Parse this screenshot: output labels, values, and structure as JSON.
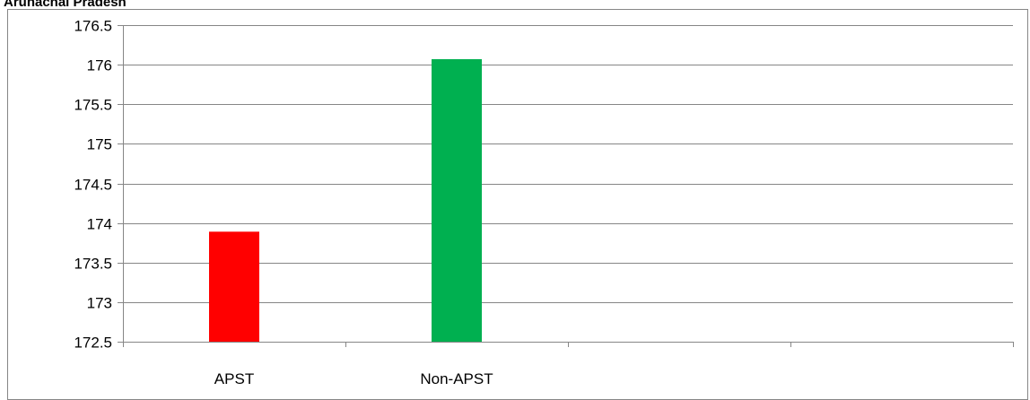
{
  "title": "Arunachal Pradesh",
  "chart_data": {
    "type": "bar",
    "title": "Arunachal Pradesh",
    "xlabel": "",
    "ylabel": "",
    "categories": [
      "APST",
      "Non-APST",
      "",
      ""
    ],
    "values": [
      173.89,
      176.07,
      null,
      null
    ],
    "colors": [
      "#ff0000",
      "#00b050",
      null,
      null
    ],
    "ylim": [
      172.5,
      176.5
    ],
    "yticks": [
      172.5,
      173,
      173.5,
      174,
      174.5,
      175,
      175.5,
      176,
      176.5
    ],
    "ytick_labels": [
      "172.5",
      "173",
      "173.5",
      "174",
      "174.5",
      "175",
      "175.5",
      "176",
      "176.5"
    ],
    "grid": true,
    "legend": "none"
  }
}
